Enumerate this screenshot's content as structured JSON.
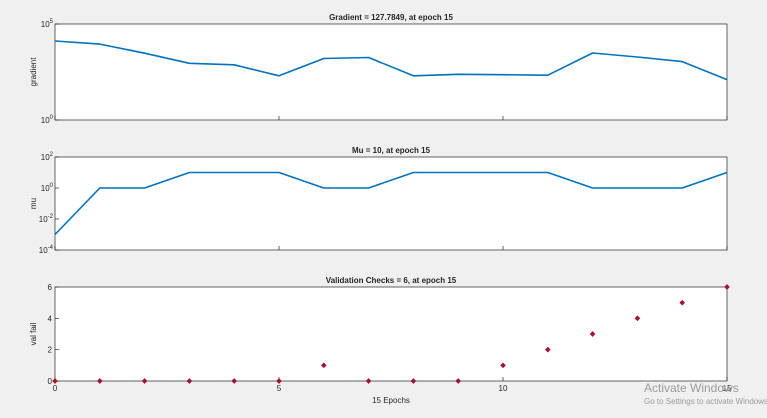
{
  "chart_data": [
    {
      "type": "line",
      "title": "Gradient = 127.7849, at epoch 15",
      "ylabel": "gradient",
      "xlabel": "",
      "yscale": "log",
      "ylim": [
        1,
        100000
      ],
      "xlim": [
        0,
        15
      ],
      "ytick_labels": [
        "10^5",
        "10^0"
      ],
      "series": [
        {
          "color": "#0072bd",
          "x": [
            0,
            1,
            2,
            3,
            4,
            5,
            6,
            7,
            8,
            9,
            10,
            11,
            12,
            13,
            14,
            15
          ],
          "y": [
            13000,
            9000,
            3000,
            900,
            750,
            200,
            1600,
            1800,
            200,
            240,
            230,
            215,
            3100,
            1900,
            1100,
            127.7849
          ]
        }
      ]
    },
    {
      "type": "line",
      "title": "Mu = 10, at epoch 15",
      "ylabel": "mu",
      "xlabel": "",
      "yscale": "log",
      "ylim": [
        0.0001,
        100
      ],
      "xlim": [
        0,
        15
      ],
      "ytick_labels": [
        "10^2",
        "10^0",
        "10^-2",
        "10^-4"
      ],
      "series": [
        {
          "color": "#0072bd",
          "x": [
            0,
            1,
            2,
            3,
            4,
            5,
            6,
            7,
            8,
            9,
            10,
            11,
            12,
            13,
            14,
            15
          ],
          "y": [
            0.001,
            1,
            1,
            10,
            10,
            10,
            1,
            1,
            10,
            10,
            10,
            10,
            1,
            1,
            1,
            10
          ]
        }
      ]
    },
    {
      "type": "scatter",
      "title": "Validation Checks = 6, at epoch 15",
      "ylabel": "val fail",
      "xlabel": "15 Epochs",
      "ylim": [
        0,
        6
      ],
      "xlim": [
        0,
        15
      ],
      "yticks": [
        0,
        2,
        4,
        6
      ],
      "xticks": [
        0,
        5,
        10,
        15
      ],
      "series": [
        {
          "color": "#a2142f",
          "x": [
            0,
            1,
            2,
            3,
            4,
            5,
            6,
            7,
            8,
            9,
            10,
            11,
            12,
            13,
            14,
            15
          ],
          "y": [
            0,
            0,
            0,
            0,
            0,
            0,
            1,
            0,
            0,
            0,
            1,
            2,
            3,
            4,
            5,
            6
          ]
        }
      ]
    }
  ],
  "watermark": {
    "line1": "Activate Windows",
    "line2": "Go to Settings to activate Windows."
  }
}
